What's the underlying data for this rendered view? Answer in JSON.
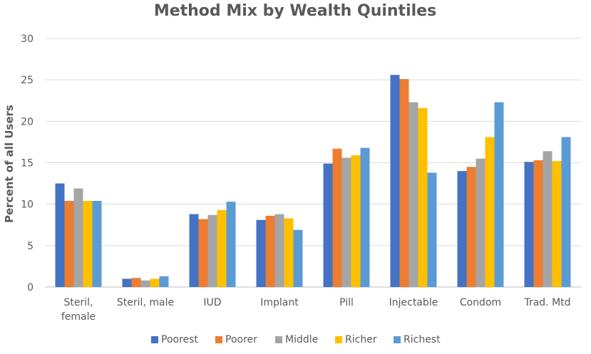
{
  "chart_data": {
    "type": "bar",
    "title": "Method Mix by Wealth Quintiles",
    "xlabel": "",
    "ylabel": "Percent of all Users",
    "ylim": [
      0,
      30
    ],
    "yticks": [
      0,
      5,
      10,
      15,
      20,
      25,
      30
    ],
    "grid": true,
    "legend_position": "bottom",
    "categories": [
      "Steril, female",
      "Steril, male",
      "IUD",
      "Implant",
      "Pill",
      "Injectable",
      "Condom",
      "Trad. Mtd"
    ],
    "category_lines": [
      [
        "Steril,",
        "female"
      ],
      [
        "Steril, male"
      ],
      [
        "IUD"
      ],
      [
        "Implant"
      ],
      [
        "Pill"
      ],
      [
        "Injectable"
      ],
      [
        "Condom"
      ],
      [
        "Trad. Mtd"
      ]
    ],
    "series": [
      {
        "name": "Poorest",
        "color": "#4472c4",
        "values": [
          12.5,
          1.0,
          8.8,
          8.1,
          14.9,
          25.6,
          14.0,
          15.1
        ]
      },
      {
        "name": "Poorer",
        "color": "#ed7d31",
        "values": [
          10.4,
          1.1,
          8.2,
          8.6,
          16.7,
          25.1,
          14.5,
          15.3
        ]
      },
      {
        "name": "Middle",
        "color": "#a5a5a5",
        "values": [
          11.9,
          0.8,
          8.7,
          8.8,
          15.6,
          22.3,
          15.5,
          16.4
        ]
      },
      {
        "name": "Richer",
        "color": "#ffc000",
        "values": [
          10.4,
          1.0,
          9.3,
          8.3,
          15.9,
          21.6,
          18.1,
          15.2
        ]
      },
      {
        "name": "Richest",
        "color": "#5b9bd5",
        "values": [
          10.4,
          1.3,
          10.3,
          6.9,
          16.8,
          13.8,
          22.3,
          18.1
        ]
      }
    ]
  }
}
